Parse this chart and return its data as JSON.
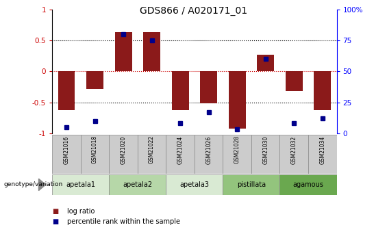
{
  "title": "GDS866 / A020171_01",
  "samples": [
    "GSM21016",
    "GSM21018",
    "GSM21020",
    "GSM21022",
    "GSM21024",
    "GSM21026",
    "GSM21028",
    "GSM21030",
    "GSM21032",
    "GSM21034"
  ],
  "log_ratio": [
    -0.62,
    -0.28,
    0.63,
    0.63,
    -0.63,
    -0.52,
    -0.92,
    0.27,
    -0.32,
    -0.62
  ],
  "percentile_rank": [
    5,
    10,
    80,
    75,
    8,
    17,
    3,
    60,
    8,
    12
  ],
  "genotype_groups": [
    {
      "label": "apetala1",
      "start": 0,
      "end": 2,
      "color": "#d9ead3"
    },
    {
      "label": "apetala2",
      "start": 2,
      "end": 4,
      "color": "#b6d7a8"
    },
    {
      "label": "apetala3",
      "start": 4,
      "end": 6,
      "color": "#d9ead3"
    },
    {
      "label": "pistillata",
      "start": 6,
      "end": 8,
      "color": "#93c47d"
    },
    {
      "label": "agamous",
      "start": 8,
      "end": 10,
      "color": "#6aa84f"
    }
  ],
  "bar_color": "#8b1a1a",
  "dot_color": "#00008b",
  "ylim": [
    -1,
    1
  ],
  "y2lim": [
    0,
    100
  ],
  "yticks": [
    -1,
    -0.5,
    0,
    0.5,
    1
  ],
  "ytick_labels": [
    "-1",
    "-0.5",
    "0",
    "0.5",
    "1"
  ],
  "y2ticks": [
    0,
    25,
    50,
    75,
    100
  ],
  "y2tick_labels": [
    "0",
    "25",
    "50",
    "75",
    "100%"
  ],
  "hline_zero_color": "#cc0000",
  "hline_color": "black",
  "legend_entries": [
    "log ratio",
    "percentile rank within the sample"
  ],
  "genotype_label": "genotype/variation",
  "sample_bg_color": "#cccccc",
  "figwidth": 5.65,
  "figheight": 3.45,
  "dpi": 100
}
